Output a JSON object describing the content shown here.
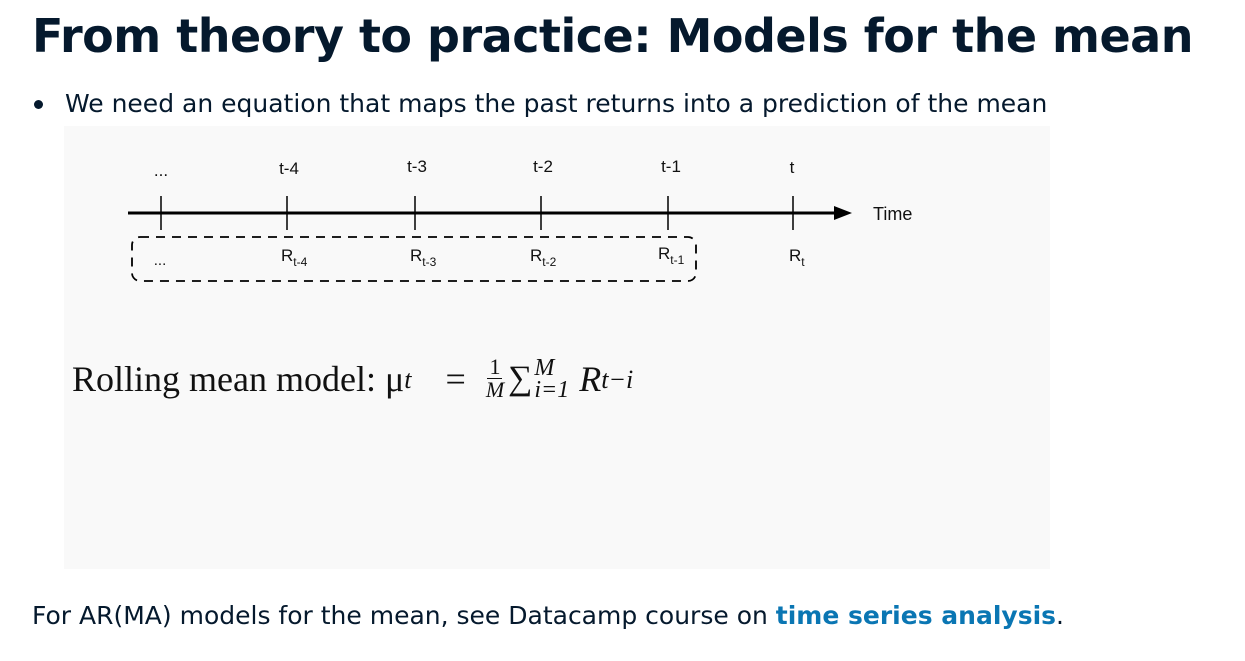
{
  "title": "From theory to practice: Models for the mean",
  "bullet": "We need an equation that maps the past returns into a prediction of the mean",
  "timeline": {
    "ticks": [
      "...",
      "t-4",
      "t-3",
      "t-2",
      "t-1",
      "t"
    ],
    "axis_label": "Time",
    "returns": [
      {
        "base": "...",
        "sub": ""
      },
      {
        "base": "R",
        "sub": "t-4"
      },
      {
        "base": "R",
        "sub": "t-3"
      },
      {
        "base": "R",
        "sub": "t-2"
      },
      {
        "base": "R",
        "sub": "t-1"
      },
      {
        "base": "R",
        "sub": "t"
      }
    ]
  },
  "formula": {
    "label": "Rolling mean model: μ",
    "mu_sub": "t",
    "equals": "=",
    "frac_num": "1",
    "frac_den": "M",
    "sum": "∑",
    "sum_upper": "M",
    "sum_lower": "i=1",
    "term": "R",
    "term_sub": "t−i"
  },
  "footer": {
    "text": "For AR(MA) models for the mean, see Datacamp course on ",
    "link": "time series analysis",
    "end": "."
  },
  "colors": {
    "text": "#05192d",
    "link": "#0a76b3",
    "figure_bg": "#f9f9f9"
  }
}
